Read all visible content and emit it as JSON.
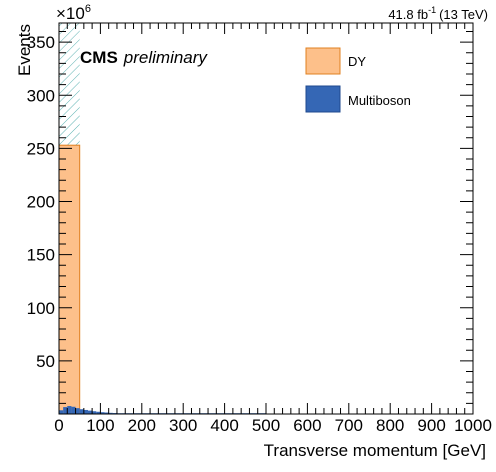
{
  "chart_data": {
    "type": "bar",
    "stacked": true,
    "title": "",
    "xlabel": "Transverse momentum [GeV]",
    "ylabel": "Events",
    "y_multiplier": "×10",
    "y_multiplier_exp": "6",
    "xlim": [
      0,
      1000
    ],
    "ylim": [
      0,
      368
    ],
    "x_ticks": [
      0,
      100,
      200,
      300,
      400,
      500,
      600,
      700,
      800,
      900,
      1000
    ],
    "y_ticks": [
      50,
      100,
      150,
      200,
      250,
      300,
      350
    ],
    "bin_width": 10,
    "series": [
      {
        "name": "DY",
        "color": "#fdc08a",
        "edge_color": "#e08020",
        "bins": [
          [
            0,
            50,
            253
          ]
        ]
      },
      {
        "name": "Multiboson",
        "color": "#3567b5",
        "edge_color": "#1f4a8f",
        "bins": [
          [
            0,
            10,
            3.5
          ],
          [
            10,
            20,
            6.5
          ],
          [
            20,
            30,
            7.5
          ],
          [
            30,
            40,
            6.8
          ],
          [
            40,
            50,
            5.5
          ],
          [
            50,
            60,
            4.5
          ],
          [
            60,
            70,
            3.8
          ],
          [
            70,
            80,
            3.2
          ],
          [
            80,
            90,
            2.6
          ],
          [
            90,
            100,
            2.1
          ],
          [
            100,
            110,
            1.7
          ],
          [
            110,
            120,
            1.4
          ],
          [
            120,
            130,
            1.1
          ],
          [
            130,
            140,
            0.9
          ],
          [
            140,
            150,
            0.7
          ],
          [
            150,
            160,
            0.55
          ],
          [
            160,
            170,
            0.45
          ],
          [
            170,
            180,
            0.35
          ],
          [
            180,
            190,
            0.3
          ],
          [
            190,
            200,
            0.25
          ],
          [
            200,
            250,
            0.2
          ],
          [
            250,
            300,
            0.15
          ],
          [
            300,
            350,
            0.12
          ],
          [
            350,
            400,
            0.1
          ],
          [
            400,
            450,
            0.08
          ],
          [
            450,
            500,
            0.06
          ]
        ]
      }
    ],
    "uncertainty": {
      "style": "hatched",
      "color": "#5fb3b3",
      "bins": [
        [
          0,
          50,
          253,
          368
        ]
      ]
    },
    "legend": {
      "placement": "top-right",
      "entries": [
        {
          "label": "DY",
          "color": "#fdc08a",
          "edge_color": "#e08020"
        },
        {
          "label": "Multiboson",
          "color": "#3567b5",
          "edge_color": "#1f4a8f"
        }
      ]
    },
    "annotations": {
      "cms_label": "CMS",
      "preliminary_label": "preliminary",
      "lumi_value": "41.8 fb",
      "lumi_exp": "-1",
      "lumi_energy": "(13 TeV)"
    },
    "grid": false
  }
}
